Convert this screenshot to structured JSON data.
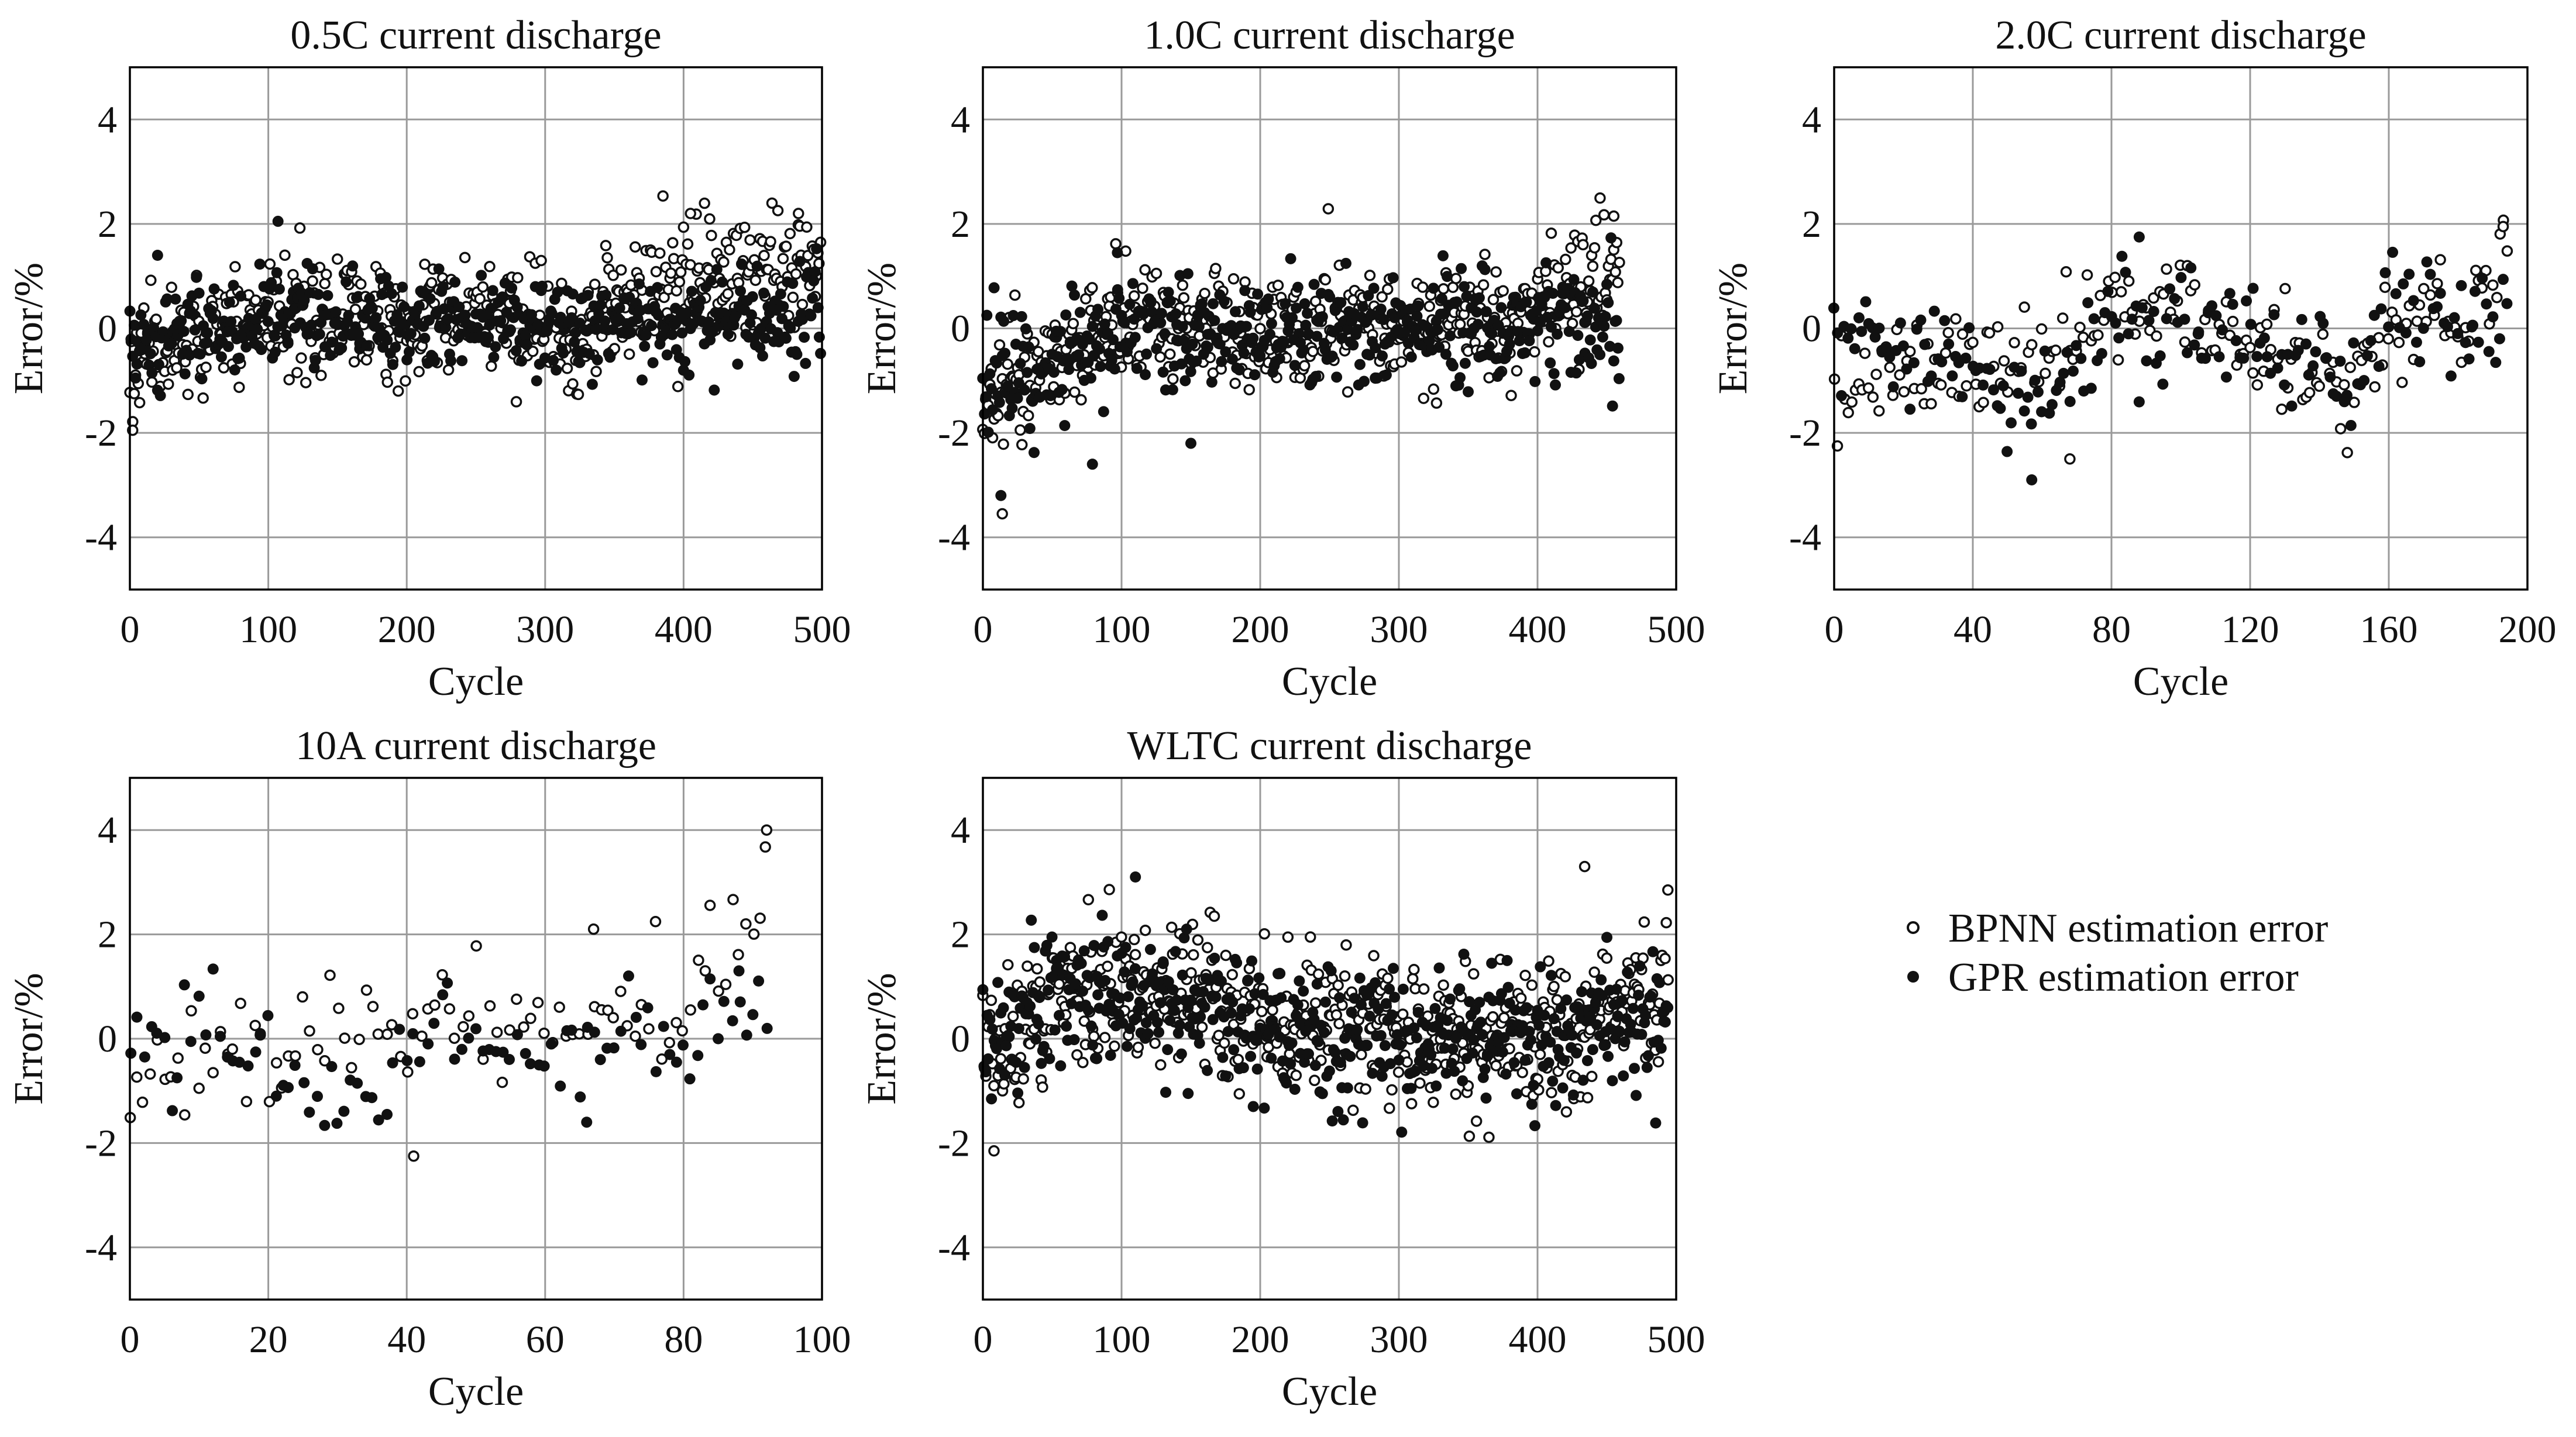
{
  "legend": {
    "bpnn_label": "BPNN estimation error",
    "gpr_label": "GPR estimation error"
  },
  "colors": {
    "marker": "#111111",
    "grid": "#9a9a9a",
    "background": "#ffffff"
  },
  "chart_data": [
    {
      "type": "scatter",
      "title": "0.5C current discharge",
      "xlabel": "Cycle",
      "ylabel": "Error/%",
      "xlim": [
        0,
        500
      ],
      "ylim": [
        -5,
        5
      ],
      "xticks": [
        0,
        100,
        200,
        300,
        400,
        500
      ],
      "yticks": [
        -4,
        -2,
        0,
        2,
        4
      ],
      "xtick_labels": [
        "0",
        "100",
        "200",
        "300",
        "400",
        "500"
      ],
      "ytick_labels": [
        "-4",
        "-2",
        "0",
        "2",
        "4"
      ],
      "x_count": 500,
      "series": [
        {
          "name": "BPNN estimation error",
          "marker": "open-circle",
          "seed": 11,
          "trend": [
            [
              0,
              -0.6
            ],
            [
              30,
              -0.2
            ],
            [
              100,
              0.2
            ],
            [
              250,
              0.2
            ],
            [
              320,
              -0.2
            ],
            [
              350,
              0.4
            ],
            [
              420,
              1.0
            ],
            [
              500,
              1.2
            ]
          ],
          "spread": 0.55
        },
        {
          "name": "GPR estimation error",
          "marker": "filled-circle",
          "seed": 12,
          "trend": [
            [
              0,
              -0.3
            ],
            [
              100,
              0.2
            ],
            [
              300,
              0.1
            ],
            [
              500,
              0.2
            ]
          ],
          "spread": 0.45
        }
      ],
      "notable_points": [
        {
          "series": "BPNN estimation error",
          "x": 2,
          "y": -1.95
        },
        {
          "series": "BPNN estimation error",
          "x": 405,
          "y": 2.2
        },
        {
          "series": "BPNN estimation error",
          "x": 483,
          "y": 2.2
        },
        {
          "series": "GPR estimation error",
          "x": 107,
          "y": 2.05
        },
        {
          "series": "GPR estimation error",
          "x": 20,
          "y": 1.4
        }
      ]
    },
    {
      "type": "scatter",
      "title": "1.0C current discharge",
      "xlabel": "Cycle",
      "ylabel": "Error/%",
      "xlim": [
        0,
        500
      ],
      "ylim": [
        -5,
        5
      ],
      "xticks": [
        0,
        100,
        200,
        300,
        400,
        500
      ],
      "yticks": [
        -4,
        -2,
        0,
        2,
        4
      ],
      "xtick_labels": [
        "0",
        "100",
        "200",
        "300",
        "400",
        "500"
      ],
      "ytick_labels": [
        "-4",
        "-2",
        "0",
        "2",
        "4"
      ],
      "x_count": 460,
      "series": [
        {
          "name": "BPNN estimation error",
          "marker": "open-circle",
          "seed": 21,
          "trend": [
            [
              0,
              -1.2
            ],
            [
              50,
              -0.6
            ],
            [
              100,
              0.2
            ],
            [
              200,
              -0.1
            ],
            [
              300,
              0.0
            ],
            [
              380,
              0.2
            ],
            [
              420,
              0.8
            ],
            [
              460,
              1.2
            ]
          ],
          "spread": 0.6
        },
        {
          "name": "GPR estimation error",
          "marker": "filled-circle",
          "seed": 22,
          "trend": [
            [
              0,
              -1.0
            ],
            [
              60,
              -0.6
            ],
            [
              100,
              0.0
            ],
            [
              200,
              -0.1
            ],
            [
              460,
              0.1
            ]
          ],
          "spread": 0.55
        }
      ],
      "notable_points": [
        {
          "series": "BPNN estimation error",
          "x": 14,
          "y": -3.55
        },
        {
          "series": "BPNN estimation error",
          "x": 455,
          "y": 2.15
        },
        {
          "series": "GPR estimation error",
          "x": 13,
          "y": -3.2
        },
        {
          "series": "GPR estimation error",
          "x": 79,
          "y": -2.6
        },
        {
          "series": "GPR estimation error",
          "x": 150,
          "y": -2.2
        },
        {
          "series": "GPR estimation error",
          "x": 97,
          "y": 1.45
        }
      ]
    },
    {
      "type": "scatter",
      "title": "2.0C current discharge",
      "xlabel": "Cycle",
      "ylabel": "Error/%",
      "xlim": [
        0,
        200
      ],
      "ylim": [
        -5,
        5
      ],
      "xticks": [
        0,
        40,
        80,
        120,
        160,
        200
      ],
      "yticks": [
        -4,
        -2,
        0,
        2,
        4
      ],
      "xtick_labels": [
        "0",
        "40",
        "80",
        "120",
        "160",
        "200"
      ],
      "ytick_labels": [
        "-4",
        "-2",
        "0",
        "2",
        "4"
      ],
      "x_count": 195,
      "series": [
        {
          "name": "BPNN estimation error",
          "marker": "open-circle",
          "seed": 31,
          "trend": [
            [
              0,
              -1.2
            ],
            [
              30,
              -0.8
            ],
            [
              60,
              -0.6
            ],
            [
              80,
              0.2
            ],
            [
              100,
              0.5
            ],
            [
              130,
              -0.8
            ],
            [
              155,
              -0.7
            ],
            [
              160,
              0.3
            ],
            [
              185,
              0.2
            ],
            [
              195,
              1.5
            ]
          ],
          "spread": 0.5
        },
        {
          "name": "GPR estimation error",
          "marker": "filled-circle",
          "seed": 32,
          "trend": [
            [
              0,
              0.2
            ],
            [
              30,
              -0.8
            ],
            [
              60,
              -1.4
            ],
            [
              80,
              0.2
            ],
            [
              120,
              0.0
            ],
            [
              150,
              -1.0
            ],
            [
              160,
              0.4
            ],
            [
              195,
              0.1
            ]
          ],
          "spread": 0.5
        }
      ],
      "notable_points": [
        {
          "series": "GPR estimation error",
          "x": 57,
          "y": -2.9
        },
        {
          "series": "GPR estimation error",
          "x": 88,
          "y": 1.75
        },
        {
          "series": "BPNN estimation error",
          "x": 193,
          "y": 1.95
        },
        {
          "series": "BPNN estimation error",
          "x": 68,
          "y": -2.5
        }
      ]
    },
    {
      "type": "scatter",
      "title": "10A current discharge",
      "xlabel": "Cycle",
      "ylabel": "Error/%",
      "xlim": [
        0,
        100
      ],
      "ylim": [
        -5,
        5
      ],
      "xticks": [
        0,
        20,
        40,
        60,
        80,
        100
      ],
      "yticks": [
        -4,
        -2,
        0,
        2,
        4
      ],
      "xtick_labels": [
        "0",
        "20",
        "40",
        "60",
        "80",
        "100"
      ],
      "ytick_labels": [
        "-4",
        "-2",
        "0",
        "2",
        "4"
      ],
      "x_count": 93,
      "series": [
        {
          "name": "BPNN estimation error",
          "marker": "open-circle",
          "seed": 41,
          "trend": [
            [
              0,
              -1.2
            ],
            [
              10,
              -0.2
            ],
            [
              20,
              -0.3
            ],
            [
              40,
              0.3
            ],
            [
              60,
              0.2
            ],
            [
              80,
              0.5
            ],
            [
              93,
              3.0
            ]
          ],
          "spread": 0.55
        },
        {
          "name": "GPR estimation error",
          "marker": "filled-circle",
          "seed": 42,
          "trend": [
            [
              0,
              0.2
            ],
            [
              10,
              0.3
            ],
            [
              20,
              -0.6
            ],
            [
              35,
              -1.2
            ],
            [
              45,
              0.6
            ],
            [
              60,
              -0.3
            ],
            [
              80,
              0.2
            ],
            [
              93,
              0.3
            ]
          ],
          "spread": 0.5
        }
      ],
      "notable_points": [
        {
          "series": "BPNN estimation error",
          "x": 92,
          "y": 4.0
        },
        {
          "series": "BPNN estimation error",
          "x": 41,
          "y": -2.25
        },
        {
          "series": "BPNN estimation error",
          "x": 67,
          "y": 2.1
        },
        {
          "series": "GPR estimation error",
          "x": 66,
          "y": -1.6
        },
        {
          "series": "GPR estimation error",
          "x": 88,
          "y": 1.3
        }
      ]
    },
    {
      "type": "scatter",
      "title": "WLTC current discharge",
      "xlabel": "Cycle",
      "ylabel": "Error/%",
      "xlim": [
        0,
        500
      ],
      "ylim": [
        -5,
        5
      ],
      "xticks": [
        0,
        100,
        200,
        300,
        400,
        500
      ],
      "yticks": [
        -4,
        -2,
        0,
        2,
        4
      ],
      "xtick_labels": [
        "0",
        "100",
        "200",
        "300",
        "400",
        "500"
      ],
      "ytick_labels": [
        "-4",
        "-2",
        "0",
        "2",
        "4"
      ],
      "x_count": 495,
      "series": [
        {
          "name": "BPNN estimation error",
          "marker": "open-circle",
          "seed": 51,
          "trend": [
            [
              0,
              -0.4
            ],
            [
              50,
              0.6
            ],
            [
              150,
              0.9
            ],
            [
              200,
              0.2
            ],
            [
              300,
              0.0
            ],
            [
              420,
              0.0
            ],
            [
              495,
              1.4
            ]
          ],
          "spread": 0.7
        },
        {
          "name": "GPR estimation error",
          "marker": "filled-circle",
          "seed": 52,
          "trend": [
            [
              0,
              -0.2
            ],
            [
              50,
              0.8
            ],
            [
              150,
              0.8
            ],
            [
              200,
              0.2
            ],
            [
              300,
              -0.1
            ],
            [
              495,
              0.3
            ]
          ],
          "spread": 0.65
        }
      ],
      "notable_points": [
        {
          "series": "BPNN estimation error",
          "x": 8,
          "y": -2.15
        },
        {
          "series": "BPNN estimation error",
          "x": 434,
          "y": 3.3
        },
        {
          "series": "BPNN estimation error",
          "x": 494,
          "y": 2.85
        },
        {
          "series": "GPR estimation error",
          "x": 110,
          "y": 3.1
        },
        {
          "series": "GPR estimation error",
          "x": 195,
          "y": -1.3
        },
        {
          "series": "GPR estimation error",
          "x": 148,
          "y": -1.05
        }
      ]
    }
  ]
}
